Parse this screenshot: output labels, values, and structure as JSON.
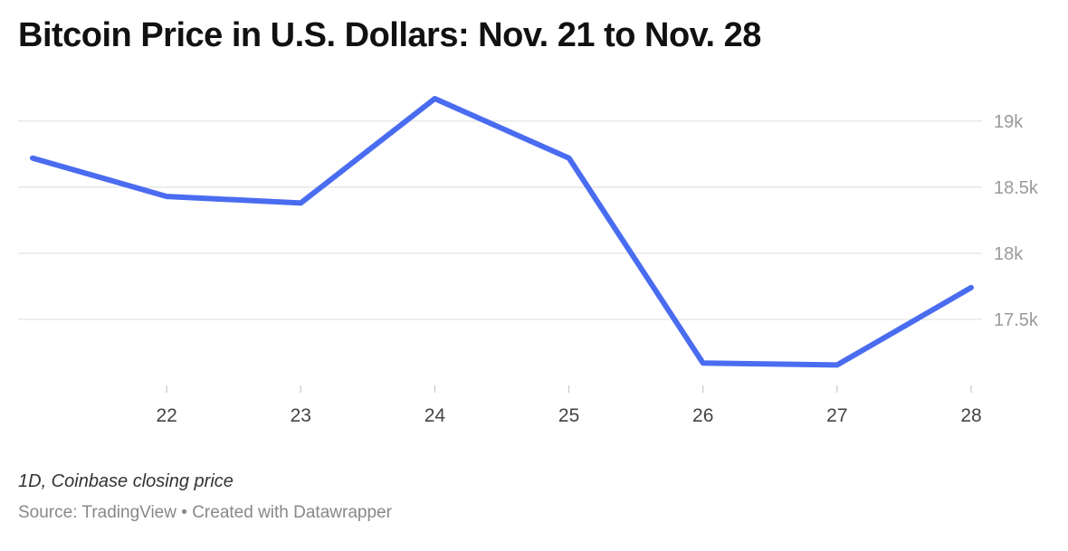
{
  "title": "Bitcoin Price in U.S. Dollars: Nov. 21 to Nov. 28",
  "note": "1D, Coinbase closing price",
  "footer": {
    "source": "Source: TradingView",
    "separator": "•",
    "credit": "Created with Datawrapper"
  },
  "colors": {
    "line": "#4a6cf0"
  },
  "chart_data": {
    "type": "line",
    "x": [
      21,
      22,
      23,
      24,
      25,
      26,
      27,
      28
    ],
    "x_tick_labels": [
      "22",
      "23",
      "24",
      "25",
      "26",
      "27",
      "28"
    ],
    "x_tick_values": [
      22,
      23,
      24,
      25,
      26,
      27,
      28
    ],
    "series": [
      {
        "values": [
          18720,
          18430,
          18380,
          19170,
          18720,
          17170,
          17155,
          17740
        ]
      }
    ],
    "y_ticks": [
      17500,
      18000,
      18500,
      19000
    ],
    "y_tick_labels": [
      "17.5k",
      "18k",
      "18.5k",
      "19k"
    ],
    "ylim": [
      17000,
      19300
    ],
    "grid": true,
    "legend": "none"
  }
}
